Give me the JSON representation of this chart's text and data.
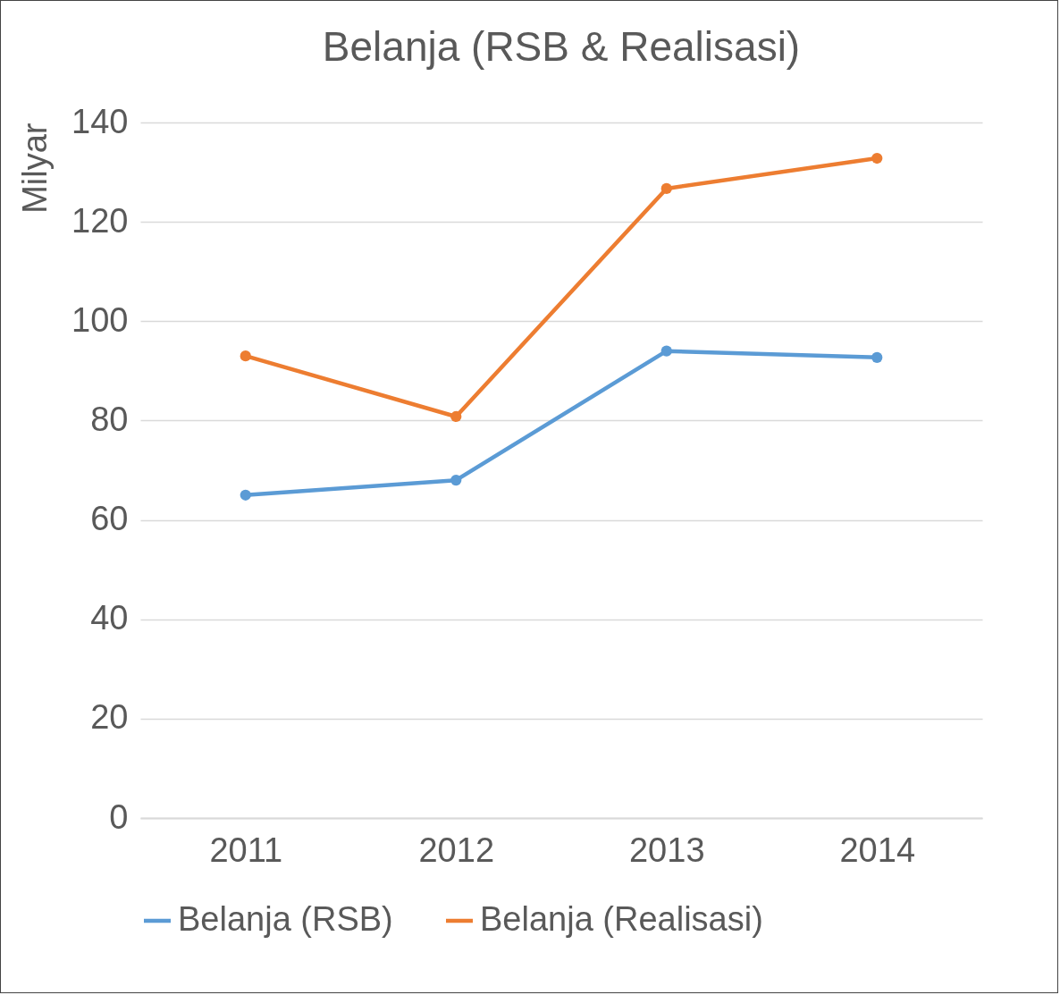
{
  "chart_data": {
    "type": "line",
    "title": "Belanja (RSB & Realisasi)",
    "ylabel": "Milyar",
    "categories": [
      "2011",
      "2012",
      "2013",
      "2014"
    ],
    "series": [
      {
        "name": "Belanja (RSB)",
        "color": "#5b9bd5",
        "values": [
          65,
          68,
          94,
          92.7
        ]
      },
      {
        "name": "Belanja (Realisasi)",
        "color": "#ed7d31",
        "values": [
          93,
          80.8,
          126.7,
          132.8
        ]
      }
    ],
    "ylim": [
      0,
      140
    ],
    "yticks": [
      0,
      20,
      40,
      60,
      80,
      100,
      120,
      140
    ],
    "grid": "y",
    "legend": "bottom",
    "marker": "circle",
    "line_style": "solid"
  }
}
